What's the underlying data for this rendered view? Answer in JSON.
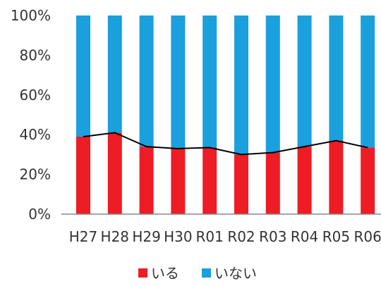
{
  "chart_data": {
    "type": "bar",
    "stacked": true,
    "percent_stacked": true,
    "categories": [
      "H27",
      "H28",
      "H29",
      "H30",
      "R01",
      "R02",
      "R03",
      "R04",
      "R05",
      "R06"
    ],
    "series": [
      {
        "name": "いる",
        "values": [
          39,
          41,
          34,
          33,
          33.5,
          30,
          31,
          34,
          37,
          33.5
        ],
        "color": "#ee1c24"
      },
      {
        "name": "いない",
        "values": [
          61,
          59,
          66,
          67,
          66.5,
          70,
          69,
          66,
          63,
          66.5
        ],
        "color": "#1aa0dc"
      }
    ],
    "overlay_line": {
      "series": "いる",
      "color": "#000000"
    },
    "y_ticks": [
      "0%",
      "20%",
      "40%",
      "60%",
      "80%",
      "100%"
    ],
    "ylim": [
      0,
      100
    ],
    "grid": false,
    "legend_position": "bottom",
    "title": "",
    "xlabel": "",
    "ylabel": ""
  }
}
